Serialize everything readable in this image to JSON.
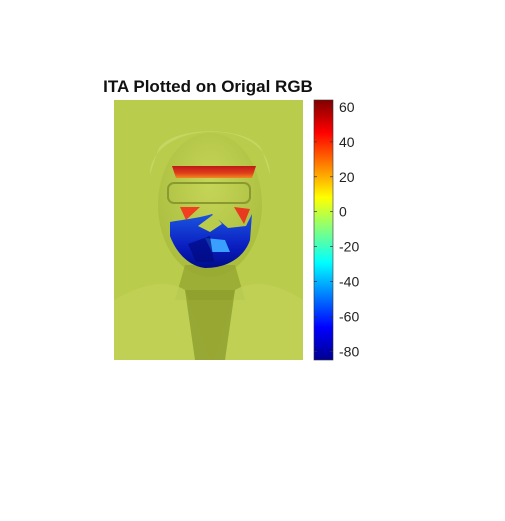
{
  "chart_data": {
    "type": "heatmap",
    "title": "ITA Plotted on Origal RGB",
    "xlabel": "",
    "ylabel": "",
    "colormap": "jet",
    "colorbar": {
      "range": [
        -85,
        64
      ],
      "ticks": [
        60,
        40,
        20,
        0,
        -20,
        -40,
        -60,
        -80
      ],
      "tick_labels": [
        "60",
        "40",
        "20",
        "0",
        "-20",
        "-40",
        "-60",
        "-80"
      ],
      "placement": "right"
    },
    "background_value": 5,
    "regions": [
      {
        "name": "forehead",
        "value": 50
      },
      {
        "name": "left-cheek-highlight",
        "value": 45
      },
      {
        "name": "right-cheek-highlight",
        "value": 40
      },
      {
        "name": "beard",
        "value": -70
      },
      {
        "name": "beard-core",
        "value": -80
      },
      {
        "name": "chin-highlight",
        "value": -45
      }
    ]
  },
  "colors": {
    "overlay": "#b8cc4a",
    "overlay_dark": "#9fb236"
  }
}
